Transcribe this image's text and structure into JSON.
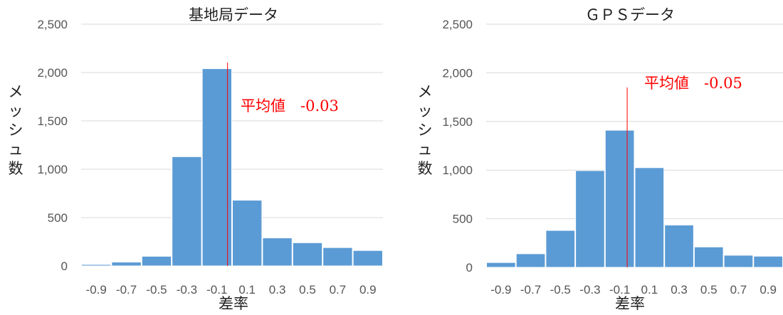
{
  "chart_data": [
    {
      "type": "bar",
      "title": "基地局データ",
      "xlabel": "差率",
      "ylabel": "メッシュ数",
      "ylim": [
        0,
        2500
      ],
      "yticks": [
        "0",
        "500",
        "1,000",
        "1,500",
        "2,000",
        "2,500"
      ],
      "categories": [
        "-0.9",
        "-0.7",
        "-0.5",
        "-0.3",
        "-0.1",
        "0.1",
        "0.3",
        "0.5",
        "0.7",
        "0.9"
      ],
      "values": [
        15,
        40,
        100,
        1130,
        2040,
        680,
        290,
        240,
        190,
        160
      ],
      "mean_value": -0.03,
      "annotation": "平均値　-0.03",
      "bar_color": "#5b9bd5",
      "mean_line_color": "#ff0000",
      "grid": true
    },
    {
      "type": "bar",
      "title": "ＧＰＳデータ",
      "xlabel": "差率",
      "ylabel": "メッシュ数",
      "ylim": [
        0,
        2500
      ],
      "yticks": [
        "0",
        "500",
        "1,000",
        "1,500",
        "2,000",
        "2,500"
      ],
      "categories": [
        "-0.9",
        "-0.7",
        "-0.5",
        "-0.3",
        "-0.1",
        "0.1",
        "0.3",
        "0.5",
        "0.7",
        "0.9"
      ],
      "values": [
        50,
        140,
        380,
        995,
        1410,
        1025,
        435,
        210,
        125,
        115
      ],
      "mean_value": -0.05,
      "annotation": "平均値　-0.05",
      "bar_color": "#5b9bd5",
      "mean_line_color": "#ff0000",
      "grid": true
    }
  ]
}
